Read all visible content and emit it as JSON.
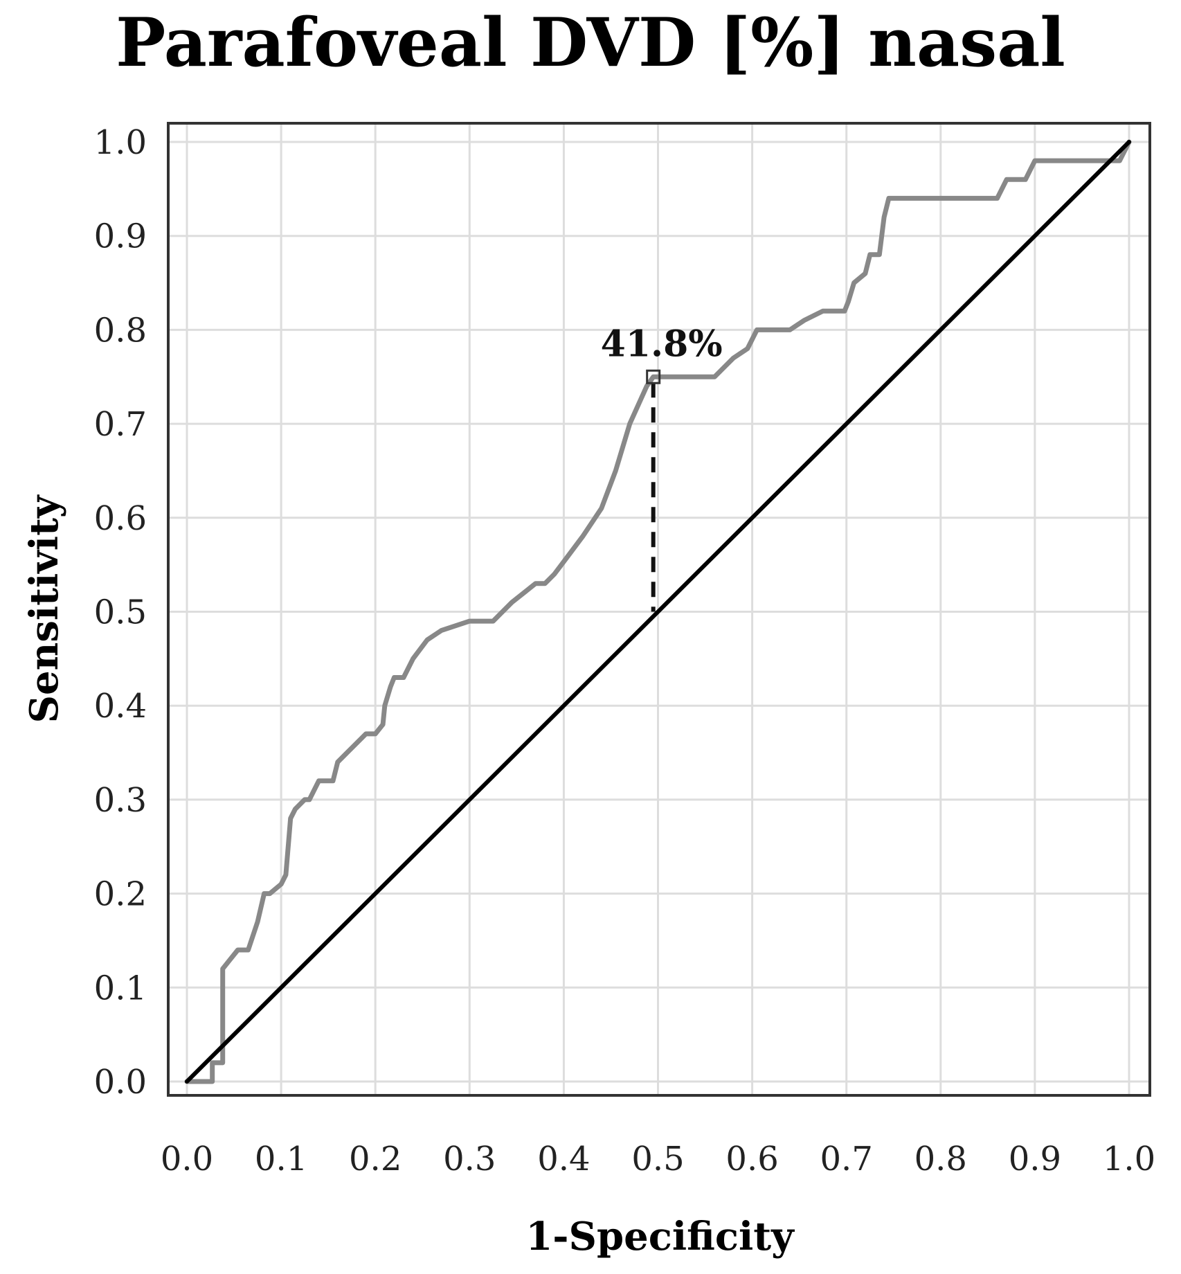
{
  "chart_data": {
    "type": "line",
    "title": "Parafoveal DVD [%] nasal",
    "xlabel": "1-Specificity",
    "ylabel": "Sensitivity",
    "xlim": [
      0.0,
      1.0
    ],
    "ylim": [
      0.0,
      1.0
    ],
    "xticks": [
      "0.0",
      "0.1",
      "0.2",
      "0.3",
      "0.4",
      "0.5",
      "0.6",
      "0.7",
      "0.8",
      "0.9",
      "1.0"
    ],
    "yticks": [
      "0.0",
      "0.1",
      "0.2",
      "0.3",
      "0.4",
      "0.5",
      "0.6",
      "0.7",
      "0.8",
      "0.9",
      "1.0"
    ],
    "grid": true,
    "series": [
      {
        "name": "",
        "color": "#888888",
        "x": [
          0.0,
          0.01,
          0.027,
          0.027,
          0.038,
          0.038,
          0.046,
          0.054,
          0.065,
          0.075,
          0.082,
          0.088,
          0.1,
          0.105,
          0.11,
          0.115,
          0.125,
          0.13,
          0.14,
          0.145,
          0.155,
          0.16,
          0.17,
          0.19,
          0.2,
          0.208,
          0.21,
          0.216,
          0.22,
          0.23,
          0.24,
          0.255,
          0.27,
          0.3,
          0.325,
          0.345,
          0.37,
          0.38,
          0.39,
          0.405,
          0.42,
          0.44,
          0.455,
          0.47,
          0.488,
          0.495,
          0.5,
          0.545,
          0.56,
          0.57,
          0.58,
          0.595,
          0.605,
          0.64,
          0.655,
          0.675,
          0.698,
          0.702,
          0.708,
          0.72,
          0.725,
          0.735,
          0.74,
          0.745,
          0.86,
          0.87,
          0.89,
          0.9,
          0.99,
          1.0
        ],
        "y": [
          0.0,
          0.0,
          0.0,
          0.02,
          0.02,
          0.12,
          0.13,
          0.14,
          0.14,
          0.17,
          0.2,
          0.2,
          0.21,
          0.22,
          0.28,
          0.29,
          0.3,
          0.3,
          0.32,
          0.32,
          0.32,
          0.34,
          0.35,
          0.37,
          0.37,
          0.38,
          0.4,
          0.42,
          0.43,
          0.43,
          0.45,
          0.47,
          0.48,
          0.49,
          0.49,
          0.51,
          0.53,
          0.53,
          0.54,
          0.56,
          0.58,
          0.61,
          0.65,
          0.7,
          0.74,
          0.75,
          0.75,
          0.75,
          0.75,
          0.76,
          0.77,
          0.78,
          0.8,
          0.8,
          0.81,
          0.82,
          0.82,
          0.83,
          0.85,
          0.86,
          0.88,
          0.88,
          0.92,
          0.94,
          0.94,
          0.96,
          0.96,
          0.98,
          0.98,
          1.0
        ]
      },
      {
        "name": "",
        "color": "#000000",
        "x": [
          0.0,
          1.0
        ],
        "y": [
          0.0,
          1.0
        ]
      }
    ],
    "annotations": [
      {
        "text": "41.8%",
        "x": 0.495,
        "y": 0.75,
        "y_bottom": 0.5
      }
    ]
  }
}
